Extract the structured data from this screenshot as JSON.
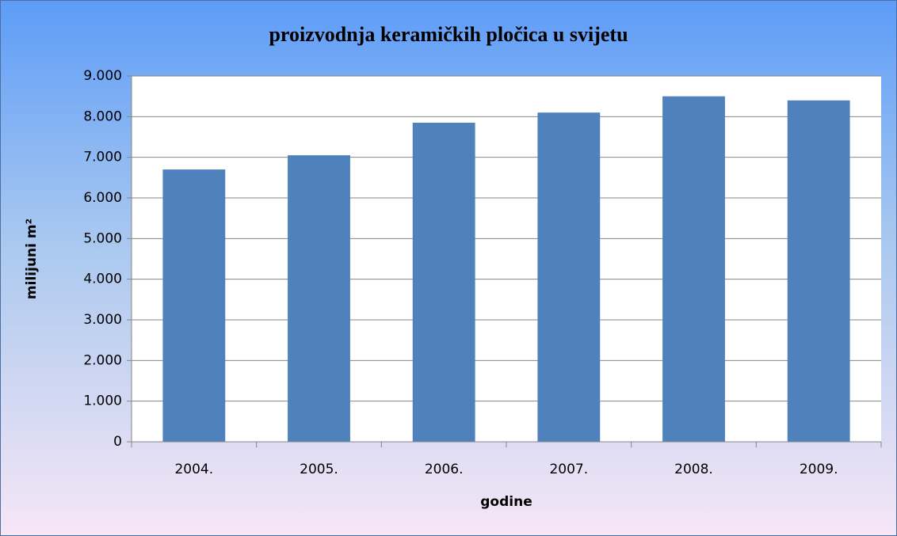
{
  "chart_data": {
    "type": "bar",
    "title": "proizvodnja keramičkih pločica u svijetu",
    "x_label": "godine",
    "y_label": "milijuni m²",
    "categories": [
      "2004.",
      "2005.",
      "2006.",
      "2007.",
      "2008.",
      "2009."
    ],
    "values": [
      6700,
      7050,
      7850,
      8100,
      8500,
      8400
    ],
    "color": "#4f81bd",
    "ylim": [
      0,
      9000
    ],
    "yticks": [
      0,
      {
        "value": 1000,
        "label": "1.000"
      },
      {
        "value": 2000,
        "label": "2.000"
      },
      {
        "value": 3000,
        "label": "3.000"
      },
      {
        "value": 4000,
        "label": "4.000"
      },
      {
        "value": 5000,
        "label": "5.000"
      },
      {
        "value": 6000,
        "label": "6.000"
      },
      {
        "value": 7000,
        "label": "7.000"
      },
      {
        "value": 8000,
        "label": "8.000"
      },
      {
        "value": 9000,
        "label": "9.000"
      }
    ],
    "grid": true
  }
}
